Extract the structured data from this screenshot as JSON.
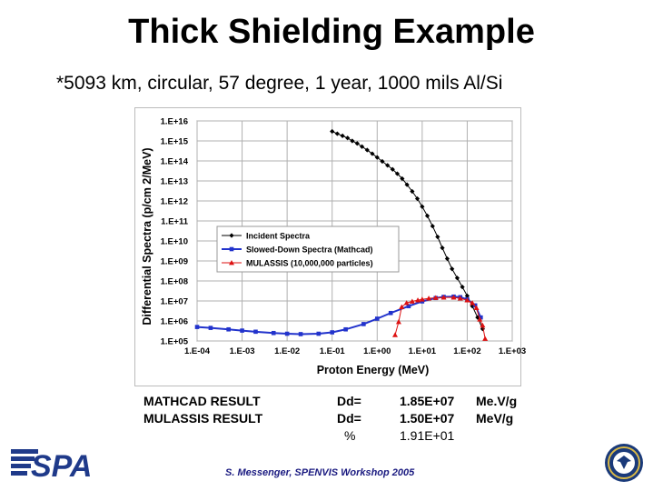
{
  "title": "Thick Shielding Example",
  "subtitle": "*5093 km, circular, 57 degree, 1 year, 1000 mils Al/Si",
  "chart_data": {
    "type": "line",
    "xlabel": "Proton Energy (MeV)",
    "ylabel": "Differential Spectra (p/cm 2/MeV)",
    "xscale": "log",
    "yscale": "log",
    "xlim": [
      0.0001,
      1000
    ],
    "ylim": [
      100000,
      10000000000000000
    ],
    "x_ticks": [
      "1.E-04",
      "1.E-03",
      "1.E-02",
      "1.E-01",
      "1.E+00",
      "1.E+01",
      "1.E+02",
      "1.E+03"
    ],
    "y_ticks": [
      "1.E+05",
      "1.E+06",
      "1.E+07",
      "1.E+08",
      "1.E+09",
      "1.E+10",
      "1.E+11",
      "1.E+12",
      "1.E+13",
      "1.E+14",
      "1.E+15",
      "1.E+16"
    ],
    "grid": true,
    "legend_position": "center-left",
    "series": [
      {
        "name": "Incident Spectra",
        "color": "#000000",
        "marker": "diamond",
        "x": [
          0.1,
          0.13,
          0.17,
          0.22,
          0.28,
          0.36,
          0.46,
          0.6,
          0.78,
          1.0,
          1.3,
          1.7,
          2.2,
          2.8,
          3.6,
          4.6,
          6.0,
          7.8,
          10,
          13,
          17,
          22,
          28,
          36,
          46,
          60,
          78,
          100,
          130,
          170,
          220
        ],
        "y": [
          3000000000000000.0,
          2300000000000000.0,
          1800000000000000.0,
          1400000000000000.0,
          1000000000000000.0,
          750000000000000.0,
          520000000000000.0,
          350000000000000.0,
          230000000000000.0,
          150000000000000.0,
          95000000000000.0,
          60000000000000.0,
          38000000000000.0,
          23000000000000.0,
          13000000000000.0,
          6500000000000.0,
          3000000000000.0,
          1300000000000.0,
          520000000000.0,
          180000000000.0,
          55000000000.0,
          16000000000.0,
          4500000000.0,
          1300000000.0,
          400000000.0,
          140000000.0,
          50000000.0,
          18000000.0,
          5500000.0,
          1500000.0,
          400000.0
        ]
      },
      {
        "name": "Slowed-Down Spectra (Mathcad)",
        "color": "#2233cc",
        "marker": "square",
        "x": [
          0.0001,
          0.0002,
          0.0005,
          0.001,
          0.002,
          0.005,
          0.01,
          0.02,
          0.05,
          0.1,
          0.2,
          0.5,
          1,
          2,
          5,
          10,
          20,
          30,
          50,
          70,
          100,
          150,
          200
        ],
        "y": [
          500000,
          450000,
          380000,
          330000,
          290000,
          250000,
          230000,
          220000,
          230000,
          270000,
          380000,
          700000,
          1300000,
          2500000,
          5500000,
          9500000,
          14000000,
          16000000,
          16500000,
          15500000,
          12000000,
          6000000,
          1500000
        ]
      },
      {
        "name": "MULASSIS (10,000,000 particles)",
        "color": "#dd1111",
        "marker": "triangle",
        "x": [
          2.5,
          3,
          3.5,
          4.5,
          6,
          8,
          10,
          14,
          20,
          30,
          50,
          70,
          100,
          130,
          160,
          190,
          220,
          250
        ],
        "y": [
          200000,
          900000,
          5000000,
          8000000,
          9500000,
          11000000,
          12000000,
          13500000,
          14500000,
          15000000,
          15000000,
          13500000,
          11000000,
          8000000,
          4500000,
          1200000,
          600000,
          130000
        ]
      }
    ]
  },
  "results": {
    "row1": {
      "label": "MATHCAD RESULT",
      "dd": "Dd=",
      "value": "1.85E+07",
      "unit": "Me.V/g"
    },
    "row2": {
      "label": "MULASSIS RESULT",
      "dd": "Dd=",
      "value": "1.50E+07",
      "unit": "MeV/g"
    },
    "row3": {
      "dd": "%",
      "value": "1.91E+01"
    }
  },
  "footer": "S. Messenger, SPENVIS Workshop 2005",
  "logos": {
    "left": "SPA",
    "right_icon": "dod-seal-icon"
  }
}
